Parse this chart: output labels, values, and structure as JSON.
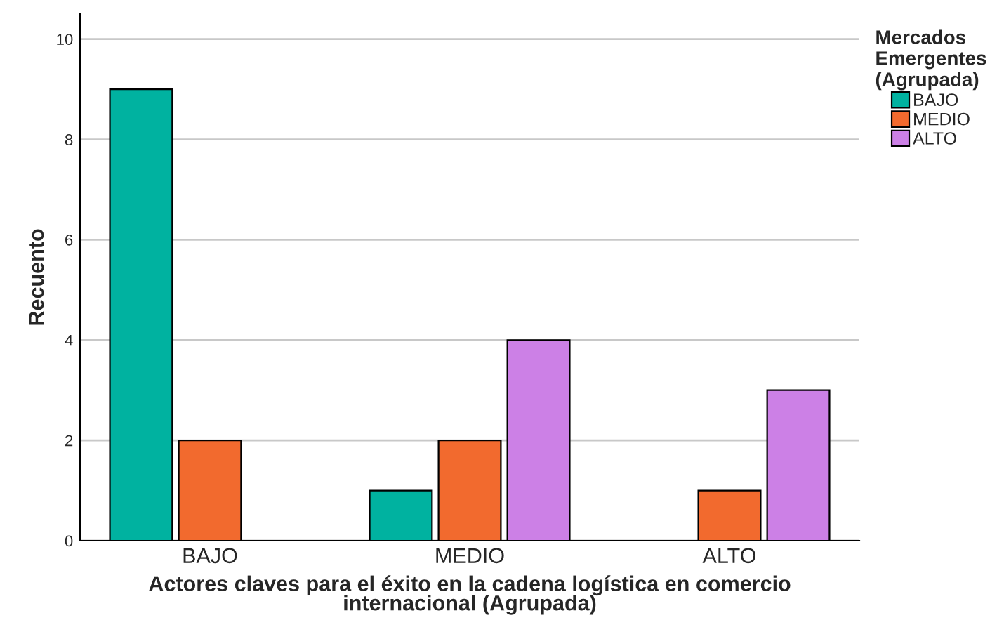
{
  "chart_data": {
    "type": "bar",
    "xlabel": "Actores claves para el éxito en la cadena logística en comercio\ninternacional (Agrupada)",
    "ylabel": "Recuento",
    "legend_title": "Mercados\nEmergentes\n(Agrupada)",
    "categories": [
      "BAJO",
      "MEDIO",
      "ALTO"
    ],
    "series": [
      {
        "name": "BAJO",
        "color": "#00b2a0",
        "values": [
          9,
          1,
          null
        ]
      },
      {
        "name": "MEDIO",
        "color": "#f26a2e",
        "values": [
          2,
          2,
          1
        ]
      },
      {
        "name": "ALTO",
        "color": "#cc80e6",
        "values": [
          null,
          4,
          3
        ]
      }
    ],
    "ylim": [
      0,
      10.5
    ],
    "yticks": [
      0,
      2,
      4,
      6,
      8,
      10
    ],
    "grid": "y",
    "legend": "right"
  }
}
